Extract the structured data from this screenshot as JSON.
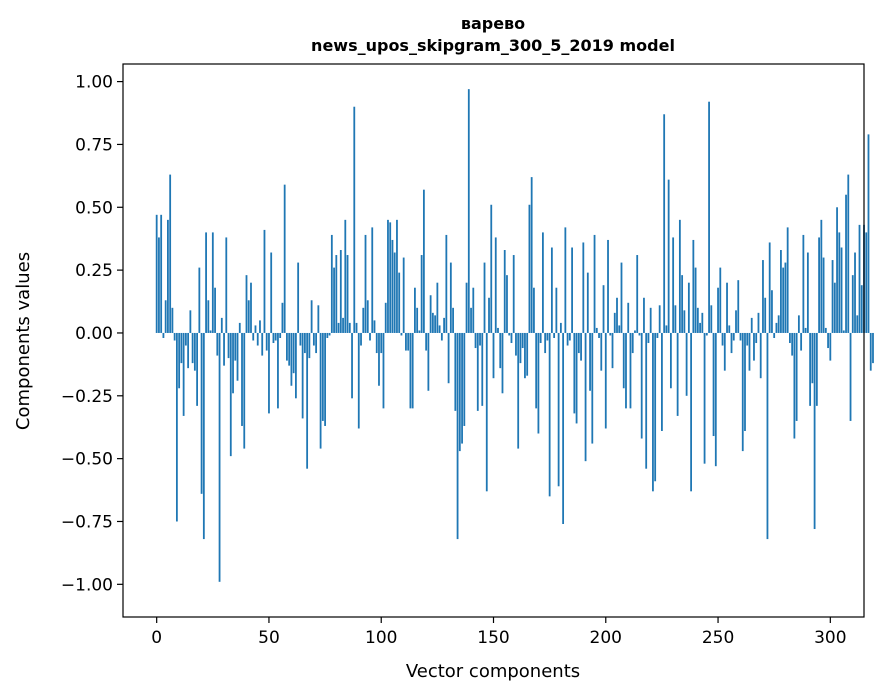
{
  "chart_data": {
    "type": "bar",
    "title": "варево",
    "subtitle": "news_upos_skipgram_300_5_2019 model",
    "xlabel": "Vector components",
    "ylabel": "Components values",
    "xlim": [
      -15,
      315
    ],
    "ylim": [
      -1.13,
      1.07
    ],
    "xticks": [
      0,
      50,
      100,
      150,
      200,
      250,
      300
    ],
    "yticks": [
      -1.0,
      -0.75,
      -0.5,
      -0.25,
      0.0,
      0.25,
      0.5,
      0.75,
      1.0
    ],
    "xtick_labels": [
      "0",
      "50",
      "100",
      "150",
      "200",
      "250",
      "300"
    ],
    "ytick_labels": [
      "−1.00",
      "−0.75",
      "−0.50",
      "−0.25",
      "0.00",
      "0.25",
      "0.50",
      "0.75",
      "1.00"
    ],
    "bar_color": "#1f77b4",
    "values": [
      0.47,
      0.38,
      0.47,
      -0.02,
      0.13,
      0.45,
      0.63,
      0.1,
      -0.03,
      -0.75,
      -0.22,
      -0.12,
      -0.33,
      -0.05,
      -0.14,
      0.09,
      -0.12,
      -0.15,
      -0.29,
      0.26,
      -0.64,
      -0.82,
      0.4,
      0.13,
      0.01,
      0.4,
      0.18,
      -0.09,
      -0.99,
      0.06,
      -0.13,
      0.38,
      -0.1,
      -0.49,
      -0.24,
      -0.11,
      -0.19,
      0.04,
      -0.37,
      -0.46,
      0.23,
      0.13,
      0.2,
      -0.03,
      0.03,
      -0.05,
      0.05,
      -0.09,
      0.41,
      -0.07,
      -0.32,
      0.32,
      -0.04,
      -0.03,
      -0.3,
      -0.02,
      0.12,
      0.59,
      -0.11,
      -0.13,
      -0.21,
      -0.16,
      -0.26,
      0.28,
      -0.05,
      -0.34,
      -0.08,
      -0.54,
      -0.1,
      0.13,
      -0.05,
      -0.08,
      0.11,
      -0.46,
      -0.35,
      -0.37,
      -0.02,
      -0.01,
      0.39,
      0.26,
      0.31,
      0.04,
      0.33,
      0.06,
      0.45,
      0.31,
      0.04,
      -0.26,
      0.9,
      0.04,
      -0.38,
      -0.05,
      0.1,
      0.39,
      0.13,
      -0.03,
      0.42,
      0.05,
      -0.08,
      -0.21,
      -0.08,
      -0.3,
      0.12,
      0.45,
      0.44,
      0.37,
      0.32,
      0.45,
      0.24,
      -0.01,
      0.3,
      -0.07,
      -0.07,
      -0.3,
      -0.3,
      0.18,
      0.1,
      0.01,
      0.31,
      0.57,
      -0.07,
      -0.23,
      0.15,
      0.08,
      0.07,
      0.2,
      0.03,
      -0.03,
      0.06,
      0.39,
      -0.2,
      0.28,
      0.1,
      -0.31,
      -0.82,
      -0.47,
      -0.44,
      -0.37,
      0.2,
      0.97,
      0.1,
      0.18,
      -0.06,
      -0.31,
      -0.05,
      -0.29,
      0.28,
      -0.63,
      0.14,
      0.51,
      -0.18,
      0.38,
      0.02,
      -0.14,
      -0.24,
      0.33,
      0.23,
      -0.01,
      -0.04,
      0.31,
      -0.09,
      -0.46,
      -0.12,
      -0.06,
      -0.18,
      -0.17,
      0.51,
      0.62,
      0.18,
      -0.3,
      -0.4,
      -0.04,
      0.4,
      -0.08,
      -0.03,
      -0.65,
      0.34,
      -0.02,
      0.18,
      -0.61,
      0.04,
      -0.76,
      0.42,
      -0.05,
      -0.03,
      0.34,
      -0.32,
      -0.36,
      -0.08,
      -0.11,
      0.36,
      -0.51,
      0.24,
      -0.23,
      -0.44,
      0.39,
      0.02,
      -0.02,
      -0.15,
      0.19,
      -0.38,
      0.37,
      -0.01,
      -0.14,
      0.08,
      0.14,
      0.03,
      0.28,
      -0.22,
      -0.3,
      0.12,
      -0.3,
      -0.08,
      0.01,
      0.31,
      -0.01,
      -0.42,
      0.14,
      -0.54,
      -0.04,
      0.1,
      -0.63,
      -0.59,
      -0.02,
      0.11,
      -0.39,
      0.87,
      0.03,
      0.61,
      -0.22,
      0.38,
      0.11,
      -0.33,
      0.45,
      0.23,
      0.09,
      -0.25,
      0.2,
      -0.63,
      0.37,
      0.26,
      0.1,
      0.04,
      0.08,
      -0.52,
      -0.01,
      0.92,
      0.11,
      -0.41,
      -0.53,
      0.18,
      0.26,
      -0.05,
      -0.15,
      0.2,
      0.03,
      -0.08,
      -0.03,
      0.09,
      0.21,
      -0.03,
      -0.47,
      -0.39,
      -0.05,
      -0.15,
      0.06,
      -0.11,
      -0.04,
      0.08,
      -0.18,
      0.29,
      0.14,
      -0.82,
      0.36,
      0.17,
      -0.02,
      0.04,
      0.07,
      0.33,
      0.26,
      0.28,
      0.42,
      -0.04,
      -0.09,
      -0.42,
      -0.35,
      0.07,
      -0.07,
      0.39,
      0.02,
      0.32,
      -0.29,
      -0.2,
      -0.78,
      -0.29,
      0.38,
      0.45,
      0.3,
      0.02,
      -0.06,
      -0.11,
      0.29,
      0.2,
      0.5,
      0.4,
      0.34,
      0.01,
      0.55,
      0.63,
      -0.35,
      0.23,
      0.32,
      0.07,
      0.43,
      0.19,
      0.43,
      0.4,
      0.79,
      -0.15,
      -0.12
    ]
  }
}
